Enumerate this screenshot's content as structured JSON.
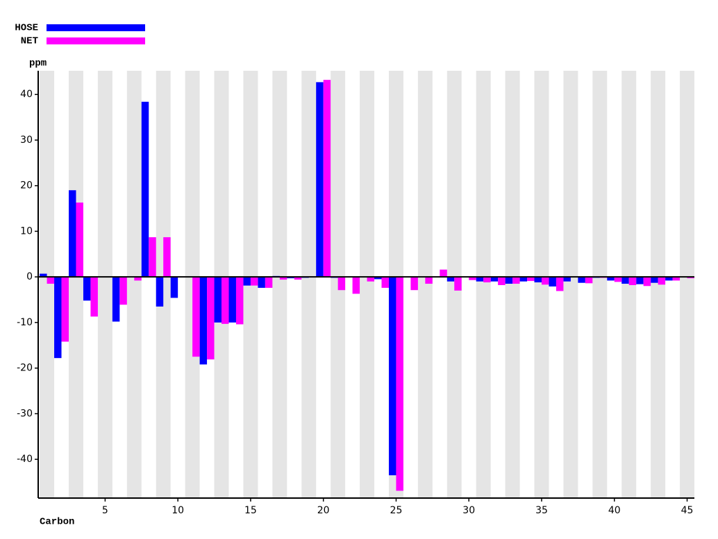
{
  "chart_data": {
    "type": "bar",
    "x": [
      1,
      2,
      3,
      4,
      5,
      6,
      7,
      8,
      9,
      10,
      11,
      12,
      13,
      14,
      15,
      16,
      17,
      18,
      19,
      20,
      21,
      22,
      23,
      24,
      25,
      26,
      27,
      28,
      29,
      30,
      31,
      32,
      33,
      34,
      35,
      36,
      37,
      38,
      39,
      40,
      41,
      42,
      43,
      44,
      45
    ],
    "series": [
      {
        "name": "HOSE",
        "color": "#0000ff",
        "values": [
          0.7,
          -17.8,
          19,
          -5.2,
          0,
          -9.8,
          0,
          38.4,
          -6.5,
          -4.6,
          0,
          -19.2,
          -10,
          -10,
          -1.9,
          -2.4,
          0.2,
          -0.3,
          -0.2,
          42.7,
          -0.2,
          0,
          0,
          -0.5,
          -43.5,
          0,
          0,
          0,
          -1,
          0,
          -1,
          -1,
          -1.5,
          -1,
          -1.2,
          -2.1,
          -1,
          -1.3,
          -0.2,
          -0.8,
          -1.5,
          -1.6,
          -1.3,
          -0.8,
          0
        ]
      },
      {
        "name": "NET",
        "color": "#ff00ff",
        "values": [
          -1.5,
          -14.2,
          16.3,
          -8.7,
          0,
          -6.1,
          -0.8,
          8.7,
          8.7,
          0,
          -17.5,
          -18.1,
          -10.3,
          -10.4,
          -1.9,
          -2.4,
          -0.6,
          -0.6,
          0,
          43.2,
          -2.9,
          -3.7,
          -1,
          -2.4,
          -46.9,
          -2.9,
          -1.5,
          1.6,
          -3,
          -0.7,
          -1.2,
          -1.8,
          -1.5,
          -0.9,
          -1.7,
          -3.1,
          0,
          -1.4,
          -0.2,
          -1.1,
          -1.8,
          -2,
          -1.7,
          -0.8,
          -0.3
        ]
      }
    ],
    "xlabel": "Carbon",
    "ylabel": "ppm",
    "xlim": [
      0.4,
      45.5
    ],
    "xticks": [
      5,
      10,
      15,
      20,
      25,
      30,
      35,
      40,
      45
    ],
    "ylim": [
      -48.5,
      45.2
    ],
    "yticks": [
      -40,
      -30,
      -20,
      -10,
      0,
      10,
      20,
      30,
      40
    ],
    "legend": "top-left"
  }
}
